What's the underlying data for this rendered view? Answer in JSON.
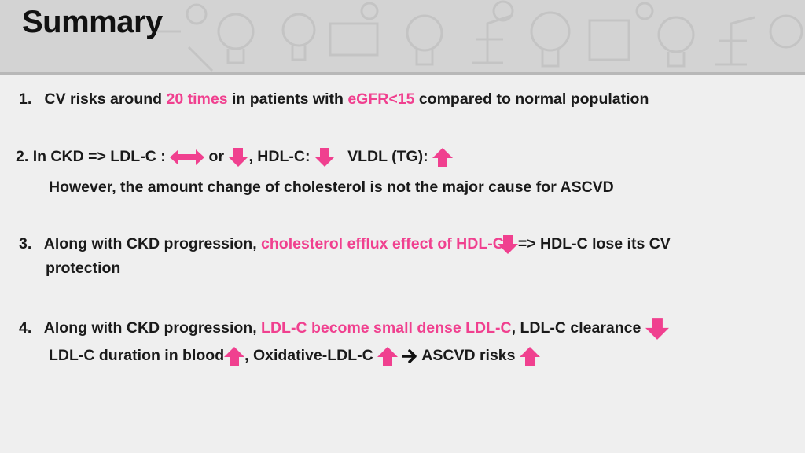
{
  "colors": {
    "accent": "#f0408f",
    "arrow": "#f0408f",
    "header_bg": "#d3d3d3",
    "page_bg": "#efefef"
  },
  "title": "Summary",
  "items": [
    {
      "number": "1.",
      "line1": {
        "a": "CV risks around ",
        "b": "20 times",
        "c": " in patients with ",
        "d": "eGFR<15",
        "e": " compared to normal population"
      }
    },
    {
      "number": "2.",
      "line1": {
        "a": "In CKD => LDL-C :",
        "b": " or ",
        "c": ", HDL-C:",
        "d": "VLDL (TG):"
      },
      "line2": "However, the amount change of cholesterol is not the major cause for ASCVD"
    },
    {
      "number": "3.",
      "line1": {
        "a": "Along with CKD progression, ",
        "b": "cholesterol efflux effect of HDL-C",
        "c": "=> HDL-C lose its CV"
      },
      "line2": "protection"
    },
    {
      "number": "4.",
      "line1": {
        "a": "Along with CKD progression, ",
        "b": "LDL-C become small dense LDL-C",
        "c": ", LDL-C clearance"
      },
      "line2": {
        "a": "LDL-C duration in blood",
        "b": ", Oxidative-LDL-C",
        "c": "ASCVD risks"
      }
    }
  ],
  "icons": [
    "double-arrow-icon",
    "down-arrow-icon",
    "up-arrow-icon",
    "right-arrow-icon"
  ]
}
